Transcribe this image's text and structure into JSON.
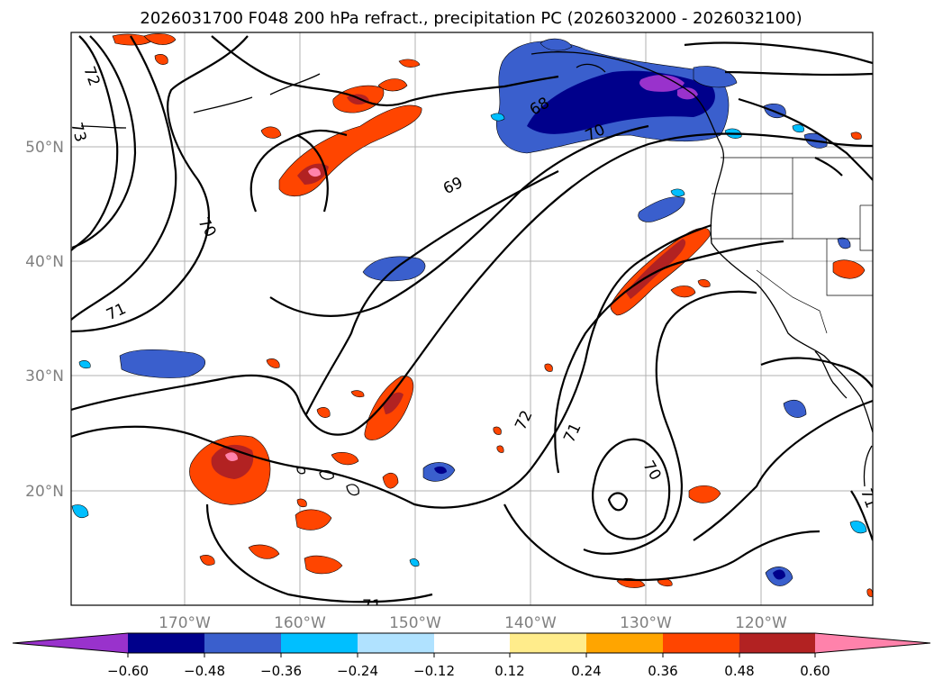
{
  "title": "2026031700 F048 200 hPa refract., precipitation PC (2026032000 - 2026032100)",
  "map": {
    "lat_labels": [
      "50°N",
      "40°N",
      "30°N",
      "20°N"
    ],
    "lon_labels": [
      "170°W",
      "160°W",
      "150°W",
      "140°W",
      "130°W",
      "120°W"
    ],
    "contour_labels": [
      "72",
      "73",
      "70",
      "71",
      "69",
      "68",
      "70",
      "72",
      "71",
      "70",
      "71",
      "71"
    ]
  },
  "colorbar": {
    "ticks": [
      "−0.60",
      "−0.48",
      "−0.36",
      "−0.24",
      "−0.12",
      "0.12",
      "0.24",
      "0.36",
      "0.48",
      "0.60"
    ],
    "colors": [
      "#9932cc",
      "#00008b",
      "#3a5fcd",
      "#00bfff",
      "#b0e2ff",
      "#ffffff",
      "#ffec8b",
      "#ffa500",
      "#ff4500",
      "#b22222",
      "#ff82ab"
    ]
  }
}
